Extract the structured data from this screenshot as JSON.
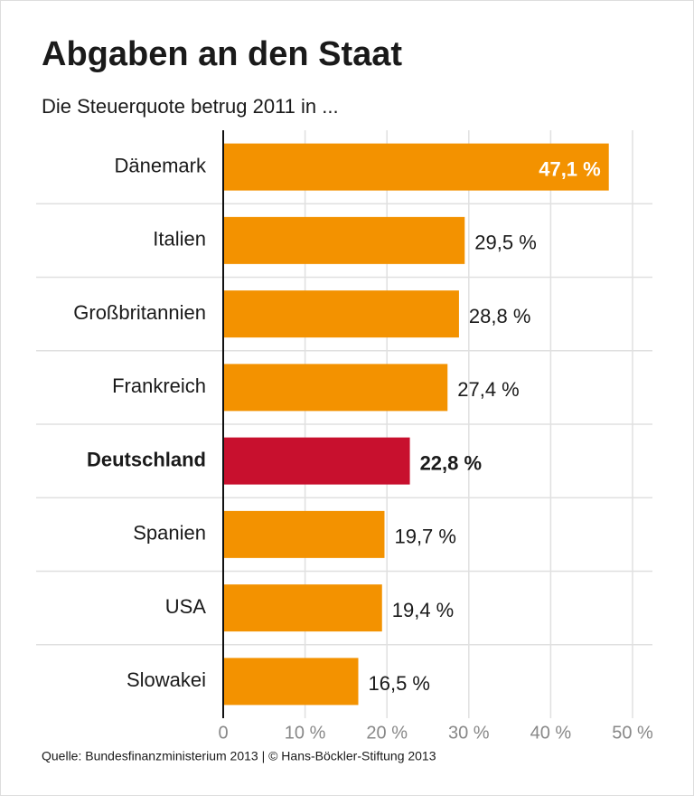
{
  "chart_data": {
    "type": "barh",
    "title": "Abgaben an den Staat",
    "subtitle": "Die Steuerquote betrug 2011 in ...",
    "source": "Quelle: Bundesfinanzministerium 2013 | © Hans-Böckler-Stiftung 2013",
    "categories": [
      "Dänemark",
      "Italien",
      "Großbritannien",
      "Frankreich",
      "Deutschland",
      "Spanien",
      "USA",
      "Slowakei"
    ],
    "values": [
      47.1,
      29.5,
      28.8,
      27.4,
      22.8,
      19.7,
      19.4,
      16.5
    ],
    "value_labels": [
      "47,1 %",
      "29,5 %",
      "28,8 %",
      "27,4 %",
      "22,8 %",
      "19,7 %",
      "19,4 %",
      "16,5 %"
    ],
    "colors": [
      "#f39200",
      "#f39200",
      "#f39200",
      "#f39200",
      "#c8102e",
      "#f39200",
      "#f39200",
      "#f39200"
    ],
    "xlim": [
      0,
      50
    ],
    "xticks": [
      0,
      {
        "value": 10,
        "label": "10 %"
      },
      {
        "value": 20,
        "label": "20 %"
      },
      {
        "value": 30,
        "label": "30 %"
      },
      {
        "value": 40,
        "label": "40 %"
      },
      {
        "value": 50,
        "label": "50 %"
      }
    ],
    "grid": true
  }
}
